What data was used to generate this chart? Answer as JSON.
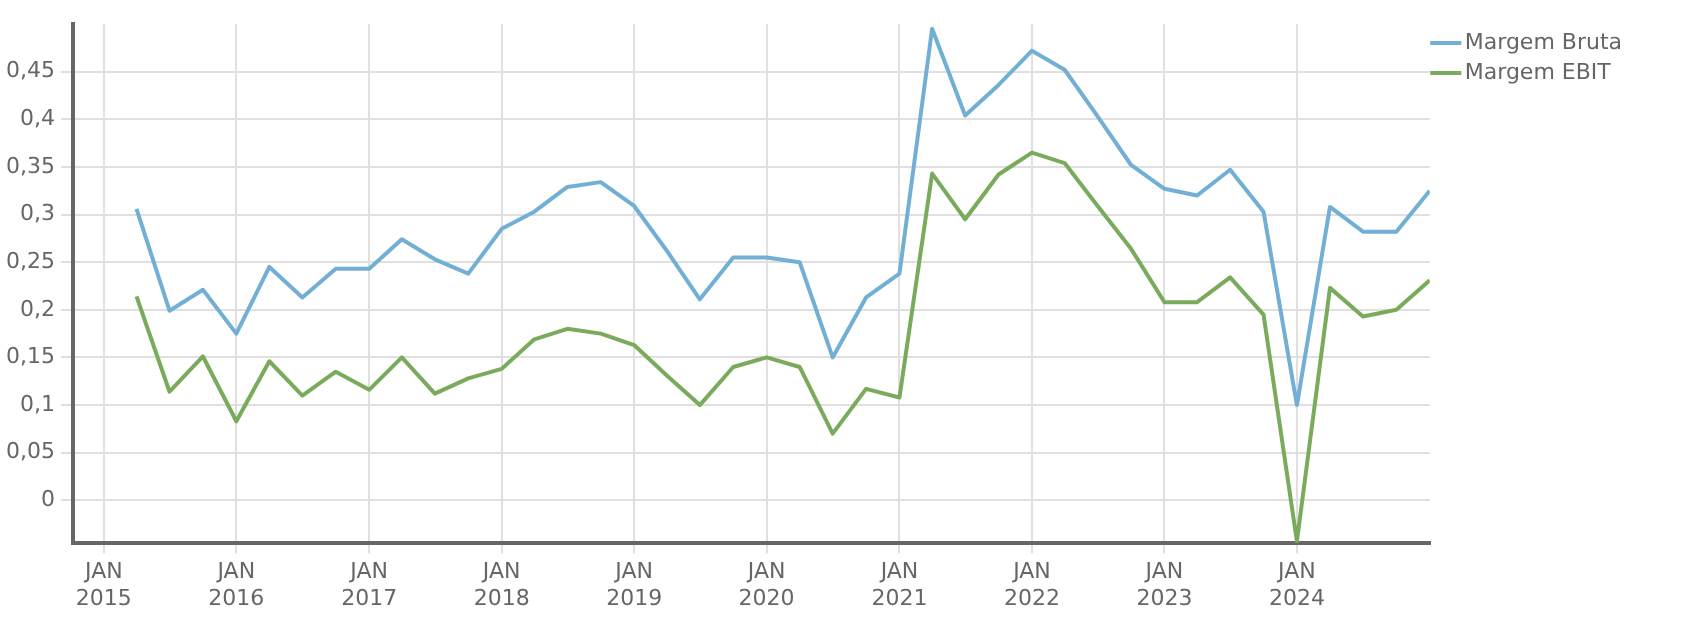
{
  "chart_data": {
    "type": "line",
    "x": [
      "2015-04",
      "2015-07",
      "2015-10",
      "2016-01",
      "2016-04",
      "2016-07",
      "2016-10",
      "2017-01",
      "2017-04",
      "2017-07",
      "2017-10",
      "2018-01",
      "2018-04",
      "2018-07",
      "2018-10",
      "2019-01",
      "2019-04",
      "2019-07",
      "2019-10",
      "2020-01",
      "2020-04",
      "2020-07",
      "2020-10",
      "2021-01",
      "2021-04",
      "2021-07",
      "2021-10",
      "2022-01",
      "2022-04",
      "2022-07",
      "2022-10",
      "2023-01",
      "2023-04",
      "2023-07",
      "2023-10",
      "2024-01",
      "2024-04",
      "2024-07",
      "2024-10",
      "2025-01"
    ],
    "series": [
      {
        "name": "Margem Bruta",
        "color": "#71afd4",
        "values": [
          0.306,
          0.199,
          0.221,
          0.175,
          0.245,
          0.213,
          0.243,
          0.243,
          0.274,
          0.253,
          0.238,
          0.285,
          0.303,
          0.329,
          0.334,
          0.309,
          0.262,
          0.211,
          0.255,
          0.255,
          0.25,
          0.15,
          0.213,
          0.238,
          0.495,
          0.404,
          0.436,
          0.472,
          0.452,
          0.403,
          0.352,
          0.327,
          0.32,
          0.347,
          0.303,
          0.1,
          0.308,
          0.282,
          0.282,
          0.325
        ]
      },
      {
        "name": "Margem EBIT",
        "color": "#7aab5c",
        "values": [
          0.214,
          0.114,
          0.151,
          0.083,
          0.146,
          0.11,
          0.135,
          0.116,
          0.15,
          0.112,
          0.128,
          0.138,
          0.169,
          0.18,
          0.175,
          0.163,
          0.131,
          0.1,
          0.14,
          0.15,
          0.14,
          0.07,
          0.117,
          0.108,
          0.343,
          0.295,
          0.342,
          0.365,
          0.354,
          0.309,
          0.264,
          0.208,
          0.208,
          0.234,
          0.195,
          -0.043,
          0.223,
          0.193,
          0.2,
          0.231
        ]
      }
    ],
    "xlim": [
      "2014-10-08",
      "2025-01-01"
    ],
    "xticks": [
      {
        "value": "2015-01",
        "label": "JAN 2015"
      },
      {
        "value": "2016-01",
        "label": "JAN 2016"
      },
      {
        "value": "2017-01",
        "label": "JAN 2017"
      },
      {
        "value": "2018-01",
        "label": "JAN 2018"
      },
      {
        "value": "2019-01",
        "label": "JAN 2019"
      },
      {
        "value": "2020-01",
        "label": "JAN 2020"
      },
      {
        "value": "2021-01",
        "label": "JAN 2021"
      },
      {
        "value": "2022-01",
        "label": "JAN 2022"
      },
      {
        "value": "2023-01",
        "label": "JAN 2023"
      },
      {
        "value": "2024-01",
        "label": "JAN 2024"
      }
    ],
    "ylim": [
      -0.045,
      0.5
    ],
    "yticks": [
      0,
      {
        "value": 0.05,
        "label": "0,05"
      },
      {
        "value": 0.1,
        "label": "0,1"
      },
      {
        "value": 0.15,
        "label": "0,15"
      },
      {
        "value": 0.2,
        "label": "0,2"
      },
      {
        "value": 0.25,
        "label": "0,25"
      },
      {
        "value": 0.3,
        "label": "0,3"
      },
      {
        "value": 0.35,
        "label": "0,35"
      },
      {
        "value": 0.4,
        "label": "0,4"
      },
      {
        "value": 0.45,
        "label": "0,45"
      }
    ],
    "grid": true,
    "legend": "top right",
    "marker": "none",
    "line_style": "solid"
  }
}
